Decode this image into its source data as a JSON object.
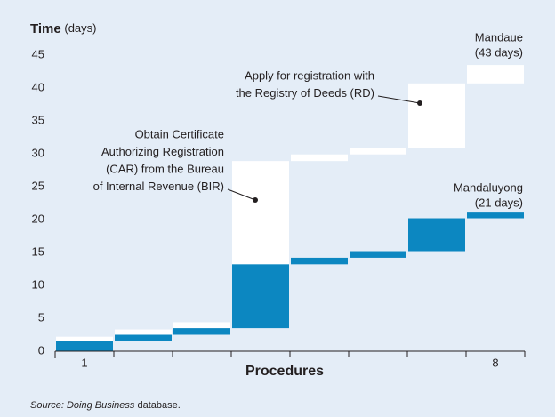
{
  "chart_data": {
    "type": "waterfall",
    "y_axis_label": "Time",
    "y_axis_unit": "(days)",
    "x_axis_label": "Procedures",
    "categories": [
      "1",
      null,
      null,
      null,
      null,
      null,
      null,
      "8"
    ],
    "series": [
      {
        "name": "Mandaue",
        "total_label": "(43 days)",
        "color": "#ffffff",
        "values": [
          2.2,
          1.1,
          1.1,
          24.5,
          1,
          1,
          9.8,
          2.8
        ]
      },
      {
        "name": "Mandaluyong",
        "total_label": "(21 days)",
        "color": "#0c87c1",
        "values": [
          1.5,
          1,
          1,
          9.7,
          1,
          1,
          5,
          1
        ]
      }
    ],
    "ylim": [
      0,
      45
    ],
    "yticks": [
      0,
      5,
      10,
      15,
      20,
      25,
      30,
      35,
      40,
      45
    ],
    "grid": false,
    "annotations": [
      {
        "lines": [
          "Obtain Certificate",
          "Authorizing Registration",
          "(CAR) from the Bureau",
          "of Internal Revenue (BIR)"
        ]
      },
      {
        "lines": [
          "Apply for registration with",
          "the Registry of Deeds (RD)"
        ]
      }
    ],
    "source": [
      "Source: Doing Business",
      "database."
    ]
  }
}
